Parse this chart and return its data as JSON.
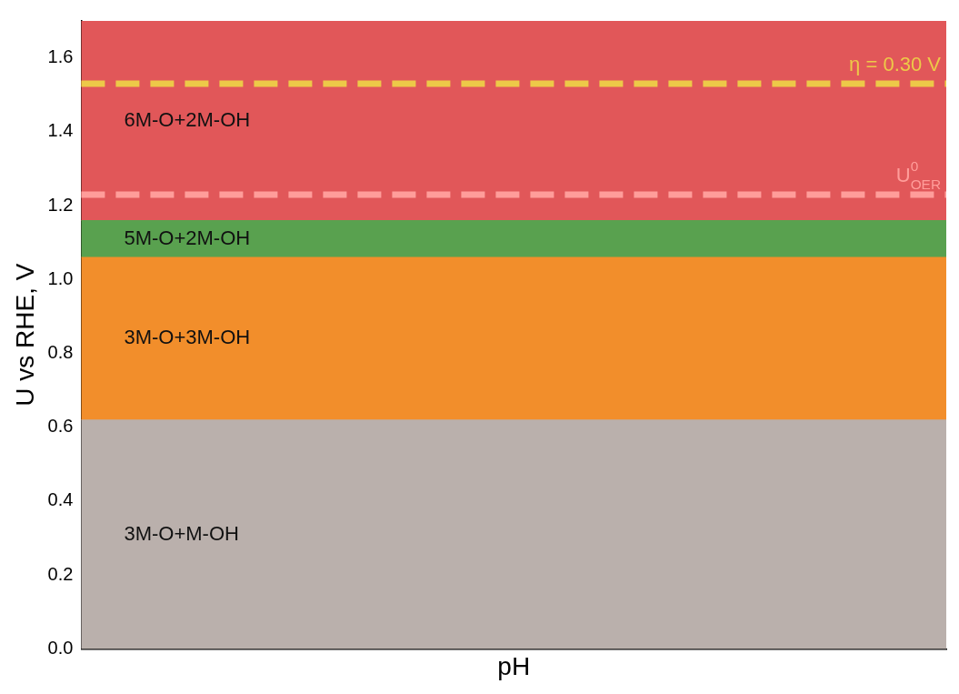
{
  "chart_data": {
    "type": "bar",
    "stacked": true,
    "xlabel": "pH",
    "ylabel": "U vs RHE, V",
    "ylim": [
      0,
      1.7
    ],
    "yticks": [
      {
        "value": 0,
        "label": "0.0"
      },
      0.2,
      0.4,
      0.6,
      0.8,
      {
        "value": 1,
        "label": "1.0"
      },
      1.2,
      1.4,
      1.6
    ],
    "tick_labels": "y",
    "legend": false,
    "categories": [
      null
    ],
    "series": [
      {
        "name": "3M-O+M-OH",
        "color": "#bab0ac",
        "values": [
          0.62
        ]
      },
      {
        "name": "3M-O+3M-OH",
        "color": "#f28e2b",
        "values": [
          0.44
        ]
      },
      {
        "name": "5M-O+2M-OH",
        "color": "#59a14f",
        "values": [
          0.1
        ]
      },
      {
        "name": "6M-O+2M-OH",
        "color": "#e15759",
        "values": [
          0.54
        ]
      }
    ],
    "ref_lines": [
      {
        "axis": "y",
        "value": 1.53,
        "color": "#edc948",
        "line_style": "dashed"
      },
      {
        "axis": "y",
        "value": 1.23,
        "label": "U$^{0}$$_{OER}$",
        "color": "#ff9d9a",
        "line_style": "dashed"
      }
    ],
    "annotations": [
      {
        "text": "η = 0.30 V",
        "y": 1.53
      }
    ]
  }
}
